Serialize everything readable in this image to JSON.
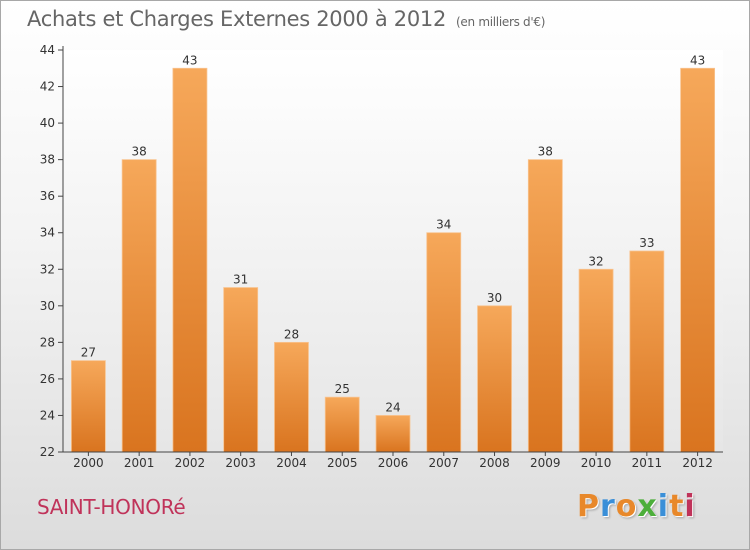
{
  "title": "Achats et Charges Externes 2000 à 2012",
  "unit": "(en milliers d'€)",
  "commune": "SAINT-HONORé",
  "logo": {
    "text": "Proxiti",
    "letter_colors": [
      "#e8882a",
      "#3a8fd8",
      "#e8882a",
      "#4cae3a",
      "#3a8fd8",
      "#e8882a",
      "#c0335a"
    ]
  },
  "colors": {
    "bar_top": "#f6a85a",
    "bar_bottom": "#d9741f",
    "title": "#666666",
    "commune": "#c0335a"
  },
  "chart_data": {
    "type": "bar",
    "categories": [
      "2000",
      "2001",
      "2002",
      "2003",
      "2004",
      "2005",
      "2006",
      "2007",
      "2008",
      "2009",
      "2010",
      "2011",
      "2012"
    ],
    "values": [
      27,
      38,
      43,
      31,
      28,
      25,
      24,
      34,
      30,
      38,
      32,
      33,
      43
    ],
    "title": "Achats et Charges Externes 2000 à 2012",
    "ylim": [
      22,
      44
    ],
    "yticks": [
      22,
      24,
      26,
      28,
      30,
      32,
      34,
      36,
      38,
      40,
      42,
      44
    ],
    "grid": false,
    "data_labels": true
  }
}
